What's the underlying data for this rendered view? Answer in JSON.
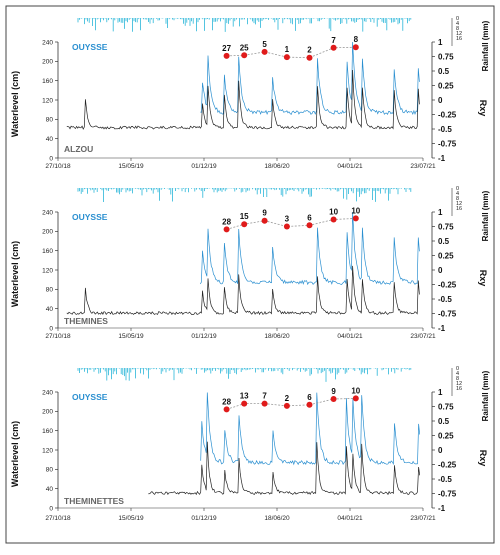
{
  "colors": {
    "rain": "#29b6d8",
    "ouysse": "#2a8fd0",
    "station": "#222222",
    "lag": "#e01b1b",
    "lag_line": "#999999",
    "station_label": "#666666",
    "frame": "#444444"
  },
  "chart_data": [
    {
      "type": "line",
      "upper_label": "OUYSSE",
      "lower_label": "ALZOU",
      "ylabel": "Waterlevel (cm)",
      "y2label": "Rxy",
      "y3label": "Rainfall (mm)",
      "ylim": [
        0,
        240
      ],
      "yticks": [
        "0",
        "40",
        "80",
        "120",
        "160",
        "200",
        "240"
      ],
      "y2lim": [
        -1,
        1
      ],
      "y2ticks": [
        "-1",
        "-0.75",
        "-0.5",
        "-0.25",
        "0",
        "0.25",
        "0.5",
        "0.75",
        "1"
      ],
      "y3lim": [
        0,
        16
      ],
      "y3ticks": [
        "0",
        "4",
        "8",
        "12",
        "16"
      ],
      "x_range": [
        "2018-10-27",
        "2021-07-23"
      ],
      "xticks": [
        "27/10/18",
        "15/05/19",
        "01/12/19",
        "18/06/20",
        "04/01/21",
        "23/07/21"
      ],
      "lags": [
        {
          "label": "27",
          "date": "2020-02-01",
          "rxy": 0.76
        },
        {
          "label": "25",
          "date": "2020-03-20",
          "rxy": 0.77
        },
        {
          "label": "5",
          "date": "2020-05-15",
          "rxy": 0.83
        },
        {
          "label": "1",
          "date": "2020-07-15",
          "rxy": 0.74
        },
        {
          "label": "2",
          "date": "2020-09-15",
          "rxy": 0.73
        },
        {
          "label": "7",
          "date": "2020-11-20",
          "rxy": 0.9
        },
        {
          "label": "8",
          "date": "2021-01-20",
          "rxy": 0.91
        }
      ]
    },
    {
      "type": "line",
      "upper_label": "OUYSSE",
      "lower_label": "THEMINES",
      "ylabel": "Waterlevel (cm)",
      "y2label": "Rxy",
      "y3label": "Rainfall (mm)",
      "ylim": [
        0,
        240
      ],
      "yticks": [
        "0",
        "40",
        "80",
        "120",
        "160",
        "200",
        "240"
      ],
      "y2lim": [
        -1,
        1
      ],
      "y2ticks": [
        "-1",
        "-0.75",
        "-0.5",
        "-0.25",
        "0",
        "0.25",
        "0.5",
        "0.75",
        "1"
      ],
      "y3lim": [
        0,
        16
      ],
      "y3ticks": [
        "0",
        "4",
        "8",
        "12",
        "16"
      ],
      "x_range": [
        "2018-10-27",
        "2021-07-23"
      ],
      "xticks": [
        "27/10/18",
        "15/05/19",
        "01/12/19",
        "18/06/20",
        "04/01/21",
        "23/07/21"
      ],
      "lags": [
        {
          "label": "28",
          "date": "2020-02-01",
          "rxy": 0.7
        },
        {
          "label": "15",
          "date": "2020-03-20",
          "rxy": 0.79
        },
        {
          "label": "9",
          "date": "2020-05-15",
          "rxy": 0.85
        },
        {
          "label": "3",
          "date": "2020-07-15",
          "rxy": 0.75
        },
        {
          "label": "6",
          "date": "2020-09-15",
          "rxy": 0.77
        },
        {
          "label": "10",
          "date": "2020-11-20",
          "rxy": 0.87
        },
        {
          "label": "10",
          "date": "2021-01-20",
          "rxy": 0.89
        }
      ]
    },
    {
      "type": "line",
      "upper_label": "OUYSSE",
      "lower_label": "THEMINETTES",
      "ylabel": "Waterlevel (cm)",
      "y2label": "Rxy",
      "y3label": "Rainfall (mm)",
      "ylim": [
        0,
        240
      ],
      "yticks": [
        "0",
        "40",
        "80",
        "120",
        "160",
        "200",
        "240"
      ],
      "y2lim": [
        -1,
        1
      ],
      "y2ticks": [
        "-1",
        "-0.75",
        "-0.5",
        "-0.25",
        "0",
        "0.25",
        "0.5",
        "0.75",
        "1"
      ],
      "y3lim": [
        0,
        16
      ],
      "y3ticks": [
        "0",
        "4",
        "8",
        "12",
        "16"
      ],
      "x_range": [
        "2018-10-27",
        "2021-07-23"
      ],
      "xticks": [
        "27/10/18",
        "15/05/19",
        "01/12/19",
        "18/06/20",
        "04/01/21",
        "23/07/21"
      ],
      "lags": [
        {
          "label": "28",
          "date": "2020-02-01",
          "rxy": 0.7
        },
        {
          "label": "13",
          "date": "2020-03-20",
          "rxy": 0.8
        },
        {
          "label": "7",
          "date": "2020-05-15",
          "rxy": 0.8
        },
        {
          "label": "2",
          "date": "2020-07-15",
          "rxy": 0.76
        },
        {
          "label": "6",
          "date": "2020-09-15",
          "rxy": 0.78
        },
        {
          "label": "9",
          "date": "2020-11-20",
          "rxy": 0.88
        },
        {
          "label": "10",
          "date": "2021-01-20",
          "rxy": 0.89
        }
      ]
    }
  ]
}
